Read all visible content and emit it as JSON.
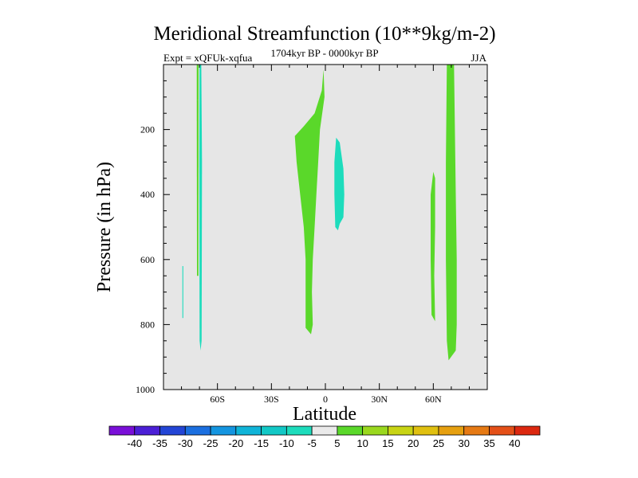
{
  "chart_data": {
    "type": "contour",
    "title": "Meridional Streamfunction (10**9kg/m-2)",
    "left_subtitle": "Expt = xQFUk-xqfua",
    "center_subtitle": "1704kyr BP - 0000kyr BP",
    "right_subtitle": "JJA",
    "xlabel": "Latitude",
    "ylabel": "Pressure (in hPa)",
    "xlim": [
      -90,
      90
    ],
    "ylim": [
      1000,
      0
    ],
    "xticks": [
      -60,
      -30,
      0,
      30,
      60
    ],
    "xtick_labels": [
      "60S",
      "30S",
      "0",
      "30N",
      "60N"
    ],
    "yticks": [
      200,
      400,
      600,
      800,
      1000
    ],
    "ytick_labels": [
      "200",
      "400",
      "600",
      "800",
      "1000"
    ],
    "background_color": "#e6e6e6",
    "colorbar": {
      "labels": [
        "-40",
        "-35",
        "-30",
        "-25",
        "-20",
        "-15",
        "-10",
        "-5",
        "5",
        "10",
        "15",
        "20",
        "25",
        "30",
        "35",
        "40"
      ],
      "colors": [
        "#7a0fd8",
        "#4b1fd6",
        "#2345d6",
        "#1b6fe0",
        "#1495e0",
        "#10b4d8",
        "#12c8c6",
        "#1ddcbc",
        "#eaeaea",
        "#5ad82a",
        "#9ad81e",
        "#c8d414",
        "#e0c010",
        "#e6a010",
        "#e67a14",
        "#e45018",
        "#dc2810"
      ]
    },
    "regions": [
      {
        "name": "green-cell-60S-upper",
        "level": 5,
        "points": [
          [
            -71.5,
            0
          ],
          [
            -70.5,
            0
          ],
          [
            -70.5,
            110
          ],
          [
            -71.5,
            110
          ]
        ]
      },
      {
        "name": "green-cell-60S-narrow",
        "level": 5,
        "points": [
          [
            -71.5,
            110
          ],
          [
            -70.5,
            110
          ],
          [
            -70.6,
            650
          ],
          [
            -71.4,
            650
          ]
        ]
      },
      {
        "name": "teal-cell-60S",
        "level": -5,
        "points": [
          [
            -70,
            0
          ],
          [
            -69,
            0
          ],
          [
            -68.6,
            300
          ],
          [
            -68.8,
            850
          ],
          [
            -69.4,
            880
          ],
          [
            -69.9,
            850
          ],
          [
            -70.1,
            300
          ]
        ]
      },
      {
        "name": "teal-cell-75S",
        "level": -5,
        "points": [
          [
            -79.5,
            620
          ],
          [
            -79,
            620
          ],
          [
            -79,
            780
          ],
          [
            -79.5,
            780
          ]
        ]
      },
      {
        "name": "green-cell-equator",
        "level": 5,
        "points": [
          [
            -1,
            15
          ],
          [
            -0.5,
            100
          ],
          [
            -3,
            200
          ],
          [
            -4,
            300
          ],
          [
            -5,
            400
          ],
          [
            -6,
            500
          ],
          [
            -7,
            600
          ],
          [
            -7.5,
            700
          ],
          [
            -7,
            800
          ],
          [
            -8,
            830
          ],
          [
            -11,
            810
          ],
          [
            -11,
            700
          ],
          [
            -11,
            600
          ],
          [
            -12,
            500
          ],
          [
            -14,
            400
          ],
          [
            -16,
            300
          ],
          [
            -17,
            220
          ],
          [
            -12,
            190
          ],
          [
            -6,
            150
          ],
          [
            -2,
            80
          ]
        ]
      },
      {
        "name": "teal-cell-8N",
        "level": -5,
        "points": [
          [
            6,
            225
          ],
          [
            8,
            240
          ],
          [
            10,
            320
          ],
          [
            10.5,
            400
          ],
          [
            10,
            470
          ],
          [
            8,
            490
          ],
          [
            7,
            510
          ],
          [
            5.5,
            500
          ],
          [
            5,
            400
          ],
          [
            5,
            300
          ]
        ]
      },
      {
        "name": "green-cell-65N-wide",
        "level": 5,
        "points": [
          [
            67.5,
            0
          ],
          [
            71.5,
            0
          ],
          [
            72,
            200
          ],
          [
            72.5,
            400
          ],
          [
            73,
            600
          ],
          [
            73,
            800
          ],
          [
            72.5,
            880
          ],
          [
            68.5,
            910
          ],
          [
            67.5,
            850
          ],
          [
            67,
            600
          ],
          [
            67,
            300
          ]
        ]
      },
      {
        "name": "green-cell-60N-narrow",
        "level": 5,
        "points": [
          [
            60,
            330
          ],
          [
            61,
            350
          ],
          [
            61,
            500
          ],
          [
            60.5,
            650
          ],
          [
            61,
            790
          ],
          [
            59,
            770
          ],
          [
            58.5,
            600
          ],
          [
            58.5,
            400
          ]
        ]
      }
    ]
  }
}
